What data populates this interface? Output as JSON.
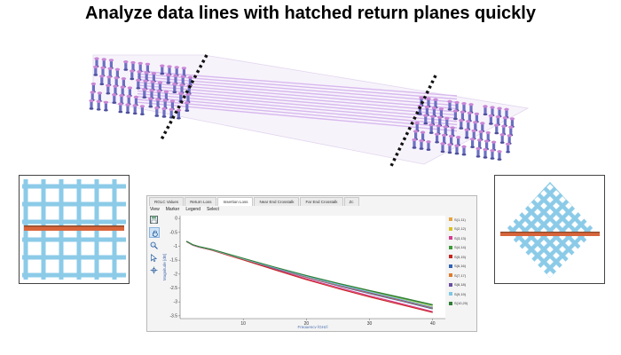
{
  "headline": "Analyze data lines with hatched return planes quickly",
  "app": {
    "tabs": [
      {
        "label": "RGLC Values",
        "active": false
      },
      {
        "label": "Return Loss",
        "active": false
      },
      {
        "label": "Insertion Loss",
        "active": true
      },
      {
        "label": "Near End Crosstalk",
        "active": false
      },
      {
        "label": "Far End Crosstalk",
        "active": false
      },
      {
        "label": "Zc",
        "active": false
      }
    ],
    "menu": [
      "View",
      "Marker",
      "Legend",
      "Select"
    ],
    "tools": [
      "save-icon",
      "pan-icon",
      "zoom-icon",
      "pointer-icon",
      "crosshair-icon"
    ]
  },
  "chart_data": {
    "type": "line",
    "title": "",
    "xlabel": "Frequency [GHz]",
    "ylabel": "Magnitude [dB]",
    "xlim": [
      0,
      42
    ],
    "ylim": [
      -3.6,
      0.1
    ],
    "xticks": [
      10,
      20,
      30,
      40
    ],
    "yticks": [
      0,
      -0.5,
      -1,
      -1.5,
      -2,
      -2.5,
      -3,
      -3.5
    ],
    "legend_position": "right",
    "grid": false,
    "x": [
      1,
      2,
      3,
      5,
      10,
      15,
      20,
      25,
      30,
      35,
      40
    ],
    "series": [
      {
        "name": "S(1,11)",
        "color": "#e8a33d",
        "values": [
          -0.82,
          -0.95,
          -1.02,
          -1.12,
          -1.45,
          -1.78,
          -2.1,
          -2.38,
          -2.65,
          -2.92,
          -3.2
        ]
      },
      {
        "name": "S(2,12)",
        "color": "#d9c020",
        "values": [
          -0.82,
          -0.95,
          -1.02,
          -1.12,
          -1.44,
          -1.77,
          -2.08,
          -2.36,
          -2.63,
          -2.9,
          -3.17
        ]
      },
      {
        "name": "S(3,13)",
        "color": "#d83a8e",
        "values": [
          -0.83,
          -0.96,
          -1.03,
          -1.14,
          -1.48,
          -1.83,
          -2.17,
          -2.48,
          -2.78,
          -3.06,
          -3.35
        ]
      },
      {
        "name": "S(4,14)",
        "color": "#3d9a3a",
        "values": [
          -0.82,
          -0.95,
          -1.02,
          -1.12,
          -1.44,
          -1.76,
          -2.07,
          -2.34,
          -2.6,
          -2.86,
          -3.12
        ]
      },
      {
        "name": "S(5,15)",
        "color": "#c8241e",
        "values": [
          -0.83,
          -0.96,
          -1.03,
          -1.14,
          -1.49,
          -1.85,
          -2.2,
          -2.52,
          -2.82,
          -3.1,
          -3.38
        ]
      },
      {
        "name": "S(6,16)",
        "color": "#2f64b4",
        "values": [
          -0.82,
          -0.95,
          -1.02,
          -1.13,
          -1.46,
          -1.8,
          -2.12,
          -2.42,
          -2.7,
          -2.97,
          -3.25
        ]
      },
      {
        "name": "S(7,17)",
        "color": "#e07a2b",
        "values": [
          -0.82,
          -0.95,
          -1.02,
          -1.13,
          -1.46,
          -1.79,
          -2.11,
          -2.4,
          -2.68,
          -2.95,
          -3.23
        ]
      },
      {
        "name": "S(8,18)",
        "color": "#6a4fa0",
        "values": [
          -0.82,
          -0.95,
          -1.02,
          -1.12,
          -1.45,
          -1.78,
          -2.09,
          -2.38,
          -2.66,
          -2.93,
          -3.21
        ]
      },
      {
        "name": "S(9,19)",
        "color": "#7dc8e6",
        "values": [
          -0.82,
          -0.95,
          -1.02,
          -1.12,
          -1.45,
          -1.77,
          -2.08,
          -2.37,
          -2.64,
          -2.91,
          -3.19
        ]
      },
      {
        "name": "S(10,20)",
        "color": "#2e7d32",
        "values": [
          -0.82,
          -0.94,
          -1.01,
          -1.11,
          -1.43,
          -1.75,
          -2.05,
          -2.33,
          -2.59,
          -2.84,
          -3.1
        ]
      }
    ]
  },
  "colors": {
    "via_blue": "#6b6fc2",
    "via_pink": "#c986d6",
    "trace_lavender": "#d7b8ee",
    "mesh_blue": "#8ccbe8",
    "trace_orange": "#d9653a",
    "cut_line": "#111111"
  }
}
